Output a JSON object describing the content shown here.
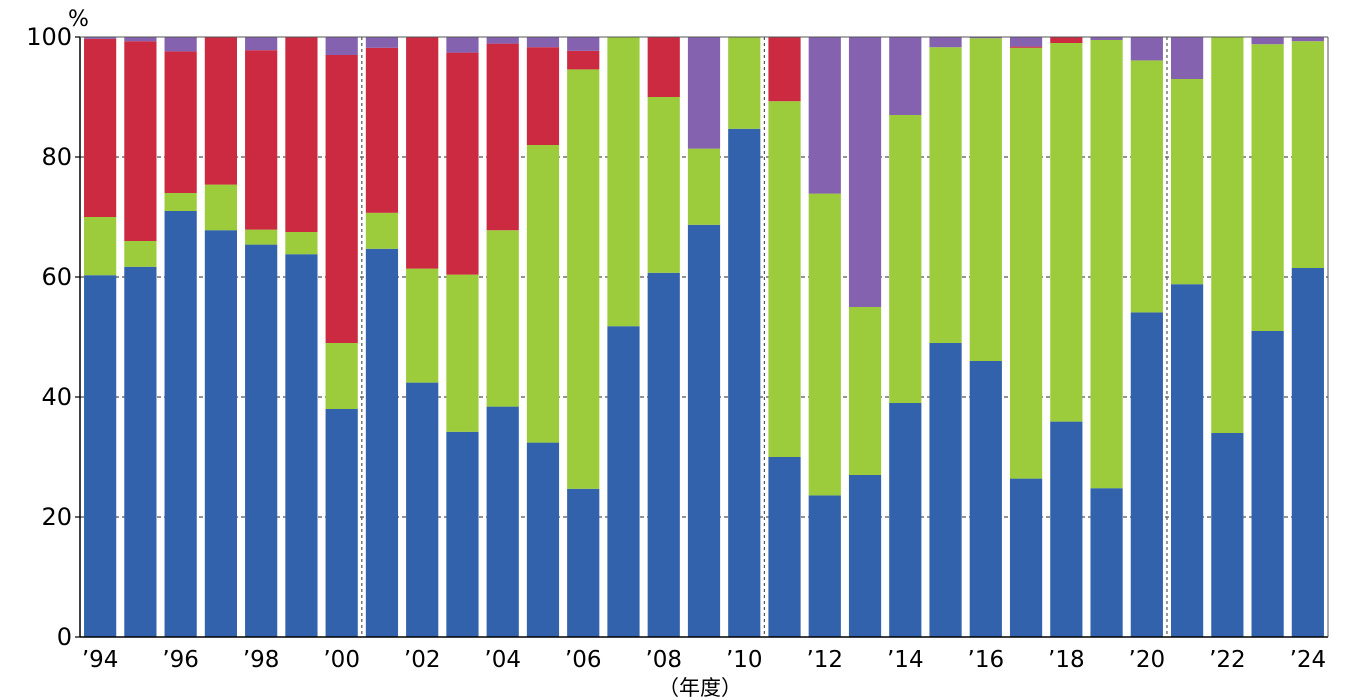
{
  "chart_data": {
    "type": "bar",
    "stacked": true,
    "y_unit": "%",
    "xlabel": "（年度）",
    "ylabel": "",
    "ylim": [
      0,
      100
    ],
    "y_ticks": [
      "0",
      "20",
      "40",
      "60",
      "80",
      "100"
    ],
    "grid": "horizontal dashed at 20, 40, 60, 80; vertical dashed separators between '00-'01, '10-'11, '20-'21",
    "categories": [
      "'94",
      "'95",
      "'96",
      "'97",
      "'98",
      "'99",
      "'00",
      "'01",
      "'02",
      "'03",
      "'04",
      "'05",
      "'06",
      "'07",
      "'08",
      "'09",
      "'10",
      "'11",
      "'12",
      "'13",
      "'14",
      "'15",
      "'16",
      "'17",
      "'18",
      "'19",
      "'20",
      "'21",
      "'22",
      "'23",
      "'24"
    ],
    "x_tick_labels": [
      "’94",
      "’96",
      "’98",
      "’00",
      "’02",
      "’04",
      "’06",
      "’08",
      "’10",
      "’12",
      "’14",
      "’16",
      "’18",
      "’20",
      "’22",
      "’24"
    ],
    "x_tick_indices": [
      0,
      2,
      4,
      6,
      8,
      10,
      12,
      14,
      16,
      18,
      20,
      22,
      24,
      26,
      28,
      30
    ],
    "separator_after_indices": [
      6,
      16,
      26
    ],
    "series": [
      {
        "color": "#3162ab",
        "values": [
          60.3,
          61.7,
          71,
          67.8,
          65.4,
          63.8,
          38,
          64.7,
          42.4,
          34.2,
          38.4,
          32.4,
          24.7,
          51.8,
          60.7,
          68.7,
          84.7,
          30,
          23.6,
          27,
          39,
          49,
          46,
          26.4,
          35.9,
          24.8,
          54.1,
          58.8,
          34,
          51,
          61.5
        ]
      },
      {
        "color": "#9ccb3b",
        "values": [
          9.7,
          4.3,
          3,
          7.6,
          2.5,
          3.7,
          11,
          6,
          19,
          26.2,
          29.4,
          49.6,
          69.9,
          48.2,
          29.3,
          12.7,
          15.3,
          59.3,
          50.3,
          28,
          48,
          49.3,
          53.8,
          71.8,
          63.1,
          74.7,
          42,
          34.2,
          66,
          47.8,
          37.8
        ]
      },
      {
        "color": "#cc2a41",
        "values": [
          29.7,
          33.3,
          23.6,
          24.6,
          29.9,
          32.5,
          48,
          27.5,
          38.6,
          37,
          31.1,
          16.3,
          3.1,
          0,
          10,
          0,
          0,
          10.7,
          0,
          0,
          0,
          0,
          0,
          0.2,
          1.0,
          0,
          0,
          0,
          0,
          0,
          0
        ]
      },
      {
        "color": "#8462b0",
        "values": [
          0.3,
          0.7,
          2.4,
          0,
          2.2,
          0,
          3,
          1.8,
          0,
          2.6,
          1.1,
          1.7,
          2.3,
          0,
          0,
          18.6,
          0,
          0,
          26.1,
          45,
          13,
          1.7,
          0.2,
          1.6,
          0,
          0.5,
          3.9,
          7,
          0,
          1.2,
          0.7
        ]
      }
    ]
  }
}
